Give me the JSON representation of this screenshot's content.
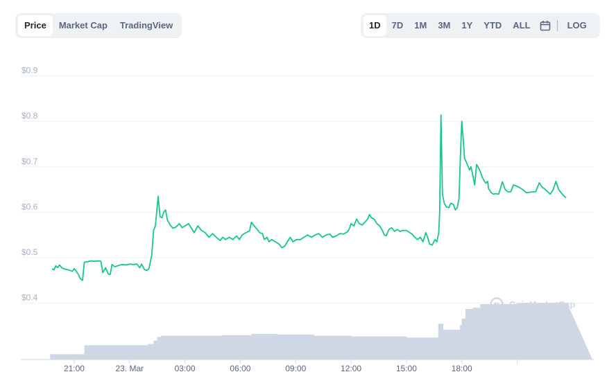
{
  "view_tabs": [
    {
      "label": "Price",
      "active": true
    },
    {
      "label": "Market Cap",
      "active": false
    },
    {
      "label": "TradingView",
      "active": false
    }
  ],
  "ranges": [
    {
      "label": "1D",
      "active": true
    },
    {
      "label": "7D",
      "active": false
    },
    {
      "label": "1M",
      "active": false
    },
    {
      "label": "3M",
      "active": false
    },
    {
      "label": "1Y",
      "active": false
    },
    {
      "label": "YTD",
      "active": false
    },
    {
      "label": "ALL",
      "active": false
    }
  ],
  "calendar_icon": "calendar-icon",
  "log_label": "LOG",
  "watermark": "CoinMarketCap",
  "colors": {
    "line": "#16c784",
    "volume": "#cfd6e4",
    "grid": "#eff2f5"
  },
  "chart_data": {
    "type": "line",
    "x_tick_labels": [
      "21:00",
      "23. Mar",
      "03:00",
      "06:00",
      "09:00",
      "12:00",
      "15:00",
      "18:00"
    ],
    "y_tick_labels": [
      "$0.4",
      "$0.5",
      "$0.6",
      "$0.7",
      "$0.8",
      "$0.9"
    ],
    "y_ticks": [
      0.4,
      0.5,
      0.6,
      0.7,
      0.8,
      0.9
    ],
    "ylim": [
      0.357,
      0.918
    ],
    "x_hours_range": [
      19.7,
      43.6
    ],
    "grid": true,
    "series": [
      {
        "type": "line",
        "points": [
          [
            19.8,
            0.476
          ],
          [
            19.9,
            0.473
          ],
          [
            20.0,
            0.482
          ],
          [
            20.1,
            0.478
          ],
          [
            20.2,
            0.484
          ],
          [
            20.35,
            0.477
          ],
          [
            20.5,
            0.475
          ],
          [
            20.7,
            0.473
          ],
          [
            20.9,
            0.47
          ],
          [
            21.0,
            0.476
          ],
          [
            21.2,
            0.465
          ],
          [
            21.35,
            0.453
          ],
          [
            21.45,
            0.45
          ],
          [
            21.55,
            0.49
          ],
          [
            21.7,
            0.491
          ],
          [
            21.9,
            0.493
          ],
          [
            22.1,
            0.492
          ],
          [
            22.3,
            0.493
          ],
          [
            22.45,
            0.492
          ],
          [
            22.55,
            0.467
          ],
          [
            22.7,
            0.478
          ],
          [
            22.85,
            0.464
          ],
          [
            22.95,
            0.463
          ],
          [
            23.05,
            0.485
          ],
          [
            23.2,
            0.48
          ],
          [
            23.4,
            0.483
          ],
          [
            23.6,
            0.485
          ],
          [
            23.8,
            0.484
          ],
          [
            24.0,
            0.486
          ],
          [
            24.2,
            0.485
          ],
          [
            24.4,
            0.486
          ],
          [
            24.55,
            0.478
          ],
          [
            24.65,
            0.486
          ],
          [
            24.8,
            0.474
          ],
          [
            24.95,
            0.472
          ],
          [
            25.05,
            0.476
          ],
          [
            25.2,
            0.505
          ],
          [
            25.3,
            0.56
          ],
          [
            25.4,
            0.57
          ],
          [
            25.55,
            0.635
          ],
          [
            25.65,
            0.59
          ],
          [
            25.75,
            0.588
          ],
          [
            25.85,
            0.6
          ],
          [
            25.95,
            0.605
          ],
          [
            26.05,
            0.583
          ],
          [
            26.2,
            0.572
          ],
          [
            26.35,
            0.565
          ],
          [
            26.5,
            0.567
          ],
          [
            26.7,
            0.575
          ],
          [
            26.85,
            0.566
          ],
          [
            27.0,
            0.57
          ],
          [
            27.2,
            0.575
          ],
          [
            27.35,
            0.565
          ],
          [
            27.5,
            0.555
          ],
          [
            27.7,
            0.57
          ],
          [
            27.9,
            0.56
          ],
          [
            28.1,
            0.555
          ],
          [
            28.3,
            0.545
          ],
          [
            28.5,
            0.553
          ],
          [
            28.7,
            0.545
          ],
          [
            28.9,
            0.538
          ],
          [
            29.05,
            0.545
          ],
          [
            29.2,
            0.54
          ],
          [
            29.4,
            0.545
          ],
          [
            29.6,
            0.54
          ],
          [
            29.8,
            0.548
          ],
          [
            29.95,
            0.54
          ],
          [
            30.1,
            0.55
          ],
          [
            30.3,
            0.555
          ],
          [
            30.5,
            0.559
          ],
          [
            30.6,
            0.578
          ],
          [
            30.75,
            0.57
          ],
          [
            30.9,
            0.563
          ],
          [
            31.05,
            0.555
          ],
          [
            31.2,
            0.553
          ],
          [
            31.3,
            0.54
          ],
          [
            31.45,
            0.545
          ],
          [
            31.55,
            0.535
          ],
          [
            31.7,
            0.54
          ],
          [
            31.9,
            0.535
          ],
          [
            32.1,
            0.53
          ],
          [
            32.25,
            0.522
          ],
          [
            32.4,
            0.525
          ],
          [
            32.55,
            0.535
          ],
          [
            32.7,
            0.545
          ],
          [
            32.85,
            0.535
          ],
          [
            33.05,
            0.54
          ],
          [
            33.25,
            0.54
          ],
          [
            33.45,
            0.545
          ],
          [
            33.65,
            0.55
          ],
          [
            33.85,
            0.545
          ],
          [
            34.05,
            0.55
          ],
          [
            34.25,
            0.553
          ],
          [
            34.45,
            0.545
          ],
          [
            34.65,
            0.55
          ],
          [
            34.85,
            0.552
          ],
          [
            35.0,
            0.545
          ],
          [
            35.2,
            0.548
          ],
          [
            35.4,
            0.553
          ],
          [
            35.6,
            0.552
          ],
          [
            35.8,
            0.557
          ],
          [
            35.9,
            0.563
          ],
          [
            36.0,
            0.575
          ],
          [
            36.15,
            0.57
          ],
          [
            36.3,
            0.585
          ],
          [
            36.45,
            0.575
          ],
          [
            36.6,
            0.572
          ],
          [
            36.75,
            0.578
          ],
          [
            36.9,
            0.585
          ],
          [
            37.0,
            0.595
          ],
          [
            37.1,
            0.588
          ],
          [
            37.25,
            0.585
          ],
          [
            37.4,
            0.575
          ],
          [
            37.55,
            0.57
          ],
          [
            37.7,
            0.56
          ],
          [
            37.8,
            0.55
          ],
          [
            37.9,
            0.548
          ],
          [
            38.05,
            0.562
          ],
          [
            38.2,
            0.566
          ],
          [
            38.35,
            0.558
          ],
          [
            38.5,
            0.562
          ],
          [
            38.65,
            0.558
          ],
          [
            38.8,
            0.56
          ],
          [
            39.0,
            0.56
          ],
          [
            39.15,
            0.556
          ],
          [
            39.3,
            0.552
          ],
          [
            39.45,
            0.545
          ],
          [
            39.6,
            0.54
          ],
          [
            39.75,
            0.545
          ],
          [
            39.9,
            0.535
          ],
          [
            40.05,
            0.555
          ],
          [
            40.15,
            0.545
          ],
          [
            40.25,
            0.53
          ],
          [
            40.4,
            0.528
          ],
          [
            40.55,
            0.54
          ],
          [
            40.65,
            0.535
          ],
          [
            40.75,
            0.555
          ],
          [
            40.8,
            0.6
          ],
          [
            40.87,
            0.814
          ],
          [
            40.95,
            0.64
          ],
          [
            41.05,
            0.62
          ],
          [
            41.15,
            0.612
          ],
          [
            41.3,
            0.61
          ],
          [
            41.4,
            0.62
          ],
          [
            41.55,
            0.617
          ],
          [
            41.65,
            0.605
          ],
          [
            41.75,
            0.61
          ],
          [
            41.85,
            0.63
          ],
          [
            41.92,
            0.72
          ],
          [
            42.0,
            0.8
          ],
          [
            42.08,
            0.76
          ],
          [
            42.15,
            0.718
          ],
          [
            42.25,
            0.71
          ],
          [
            42.35,
            0.7
          ],
          [
            42.42,
            0.693
          ],
          [
            42.5,
            0.7
          ],
          [
            42.6,
            0.68
          ],
          [
            42.7,
            0.66
          ],
          [
            42.8,
            0.705
          ],
          [
            42.9,
            0.698
          ],
          [
            43.0,
            0.69
          ],
          [
            43.1,
            0.678
          ],
          [
            43.2,
            0.67
          ],
          [
            43.3,
            0.664
          ],
          [
            43.4,
            0.668
          ],
          [
            43.45,
            0.652
          ],
          [
            43.6,
            0.643
          ],
          [
            43.7,
            0.64
          ],
          [
            43.85,
            0.641
          ],
          [
            44.0,
            0.64
          ],
          [
            44.2,
            0.667
          ],
          [
            44.35,
            0.65
          ],
          [
            44.5,
            0.645
          ],
          [
            44.65,
            0.645
          ],
          [
            44.8,
            0.66
          ],
          [
            44.95,
            0.658
          ],
          [
            45.1,
            0.655
          ],
          [
            45.3,
            0.65
          ],
          [
            45.5,
            0.643
          ],
          [
            45.7,
            0.644
          ],
          [
            45.85,
            0.645
          ],
          [
            46.0,
            0.645
          ],
          [
            46.2,
            0.665
          ],
          [
            46.35,
            0.655
          ],
          [
            46.5,
            0.651
          ],
          [
            46.65,
            0.645
          ],
          [
            46.8,
            0.64
          ],
          [
            46.95,
            0.65
          ],
          [
            47.1,
            0.668
          ],
          [
            47.25,
            0.65
          ],
          [
            47.4,
            0.642
          ],
          [
            47.55,
            0.635
          ],
          [
            47.65,
            0.632
          ]
        ]
      },
      {
        "type": "volume",
        "relative_levels": [
          [
            19.7,
            0.09
          ],
          [
            21.5,
            0.09
          ],
          [
            21.55,
            0.24
          ],
          [
            24.9,
            0.24
          ],
          [
            25.0,
            0.26
          ],
          [
            25.3,
            0.32
          ],
          [
            25.5,
            0.38
          ],
          [
            25.7,
            0.4
          ],
          [
            26.0,
            0.4
          ],
          [
            29.0,
            0.41
          ],
          [
            30.0,
            0.41
          ],
          [
            30.6,
            0.43
          ],
          [
            31.0,
            0.43
          ],
          [
            32.0,
            0.42
          ],
          [
            33.0,
            0.42
          ],
          [
            34.0,
            0.4
          ],
          [
            36.0,
            0.39
          ],
          [
            38.0,
            0.39
          ],
          [
            39.0,
            0.37
          ],
          [
            40.7,
            0.37
          ],
          [
            40.72,
            0.6
          ],
          [
            40.85,
            0.6
          ],
          [
            41.0,
            0.5
          ],
          [
            41.6,
            0.5
          ],
          [
            41.9,
            0.58
          ],
          [
            42.0,
            0.69
          ],
          [
            42.2,
            0.85
          ],
          [
            42.6,
            0.87
          ],
          [
            43.0,
            0.93
          ],
          [
            44.0,
            0.93
          ],
          [
            45.0,
            0.95
          ],
          [
            47.7,
            0.95
          ]
        ]
      }
    ],
    "x_tick_positions": [
      21.0,
      24.0,
      27.0,
      30.0,
      33.0,
      36.0,
      39.0,
      42.0,
      45.0
    ]
  }
}
